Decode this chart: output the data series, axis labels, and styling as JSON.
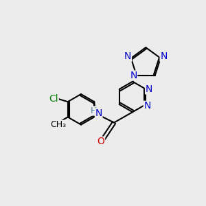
{
  "bg_color": "#ececec",
  "bond_color": "#000000",
  "bond_width": 1.5,
  "atom_colors": {
    "C": "#000000",
    "N": "#0000cc",
    "O": "#cc0000",
    "Cl": "#008000",
    "H": "#4a7fa5"
  },
  "font_size": 10,
  "font_size_small": 9
}
